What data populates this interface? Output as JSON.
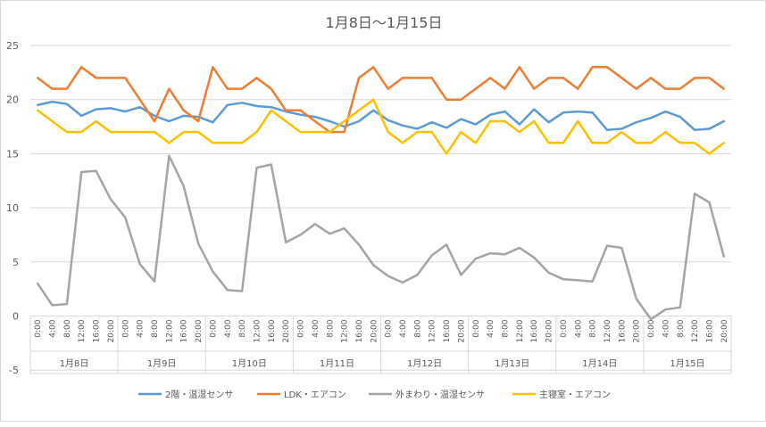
{
  "chart_data": {
    "type": "line",
    "title": "1月8日～1月15日",
    "xlabel": "",
    "ylabel": "",
    "ylim": [
      -5,
      25
    ],
    "yticks": [
      -5,
      0,
      5,
      10,
      15,
      20,
      25
    ],
    "grid": true,
    "legend": "bottom",
    "hours": [
      "0:00",
      "4:00",
      "8:00",
      "12:00",
      "16:00",
      "20:00"
    ],
    "days": [
      "1月8日",
      "1月9日",
      "1月10日",
      "1月11日",
      "1月12日",
      "1月13日",
      "1月14日",
      "1月15日"
    ],
    "series": [
      {
        "name": "2階・温湿センサ",
        "color": "#5b9bd5",
        "values": [
          19.5,
          19.8,
          19.6,
          18.5,
          19.1,
          19.2,
          18.9,
          19.3,
          18.5,
          18.0,
          18.5,
          18.4,
          17.9,
          19.5,
          19.7,
          19.4,
          19.3,
          18.9,
          18.6,
          18.4,
          18.0,
          17.5,
          18.0,
          19.0,
          18.1,
          17.6,
          17.3,
          17.9,
          17.4,
          18.2,
          17.7,
          18.6,
          18.9,
          17.7,
          19.1,
          17.9,
          18.8,
          18.9,
          18.8,
          17.2,
          17.3,
          17.9,
          18.3,
          18.9,
          18.4,
          17.2,
          17.3,
          18.0
        ]
      },
      {
        "name": "LDK・エアコン",
        "color": "#ed7d31",
        "values": [
          22,
          21,
          21,
          23,
          22,
          22,
          22,
          20,
          18,
          21,
          19,
          18,
          23,
          21,
          21,
          22,
          21,
          19,
          19,
          18,
          17,
          17,
          22,
          23,
          21,
          22,
          22,
          22,
          20,
          20,
          21,
          22,
          21,
          23,
          21,
          22,
          22,
          21,
          23,
          23,
          22,
          21,
          22,
          21,
          21,
          22,
          22,
          21
        ]
      },
      {
        "name": "外まわり・温湿センサ",
        "color": "#a5a5a5",
        "values": [
          3.0,
          1.0,
          1.1,
          13.3,
          13.4,
          10.8,
          9.1,
          4.8,
          3.2,
          14.8,
          12.0,
          6.7,
          4.1,
          2.4,
          2.3,
          13.7,
          14.0,
          6.8,
          7.5,
          8.5,
          7.6,
          8.1,
          6.6,
          4.7,
          3.7,
          3.1,
          3.8,
          5.6,
          6.6,
          3.8,
          5.3,
          5.8,
          5.7,
          6.3,
          5.4,
          4.0,
          3.4,
          3.3,
          3.2,
          6.5,
          6.3,
          1.6,
          -0.3,
          0.6,
          0.8,
          11.3,
          10.5,
          5.5
        ]
      },
      {
        "name": "主寝室・エアコン",
        "color": "#ffc000",
        "values": [
          19,
          18,
          17,
          17,
          18,
          17,
          17,
          17,
          17,
          16,
          17,
          17,
          16,
          16,
          16,
          17,
          19,
          18,
          17,
          17,
          17,
          18,
          19,
          20,
          17,
          16,
          17,
          17,
          15,
          17,
          16,
          18,
          18,
          17,
          18,
          16,
          16,
          18,
          16,
          16,
          17,
          16,
          16,
          17,
          16,
          16,
          15,
          16
        ]
      }
    ]
  }
}
